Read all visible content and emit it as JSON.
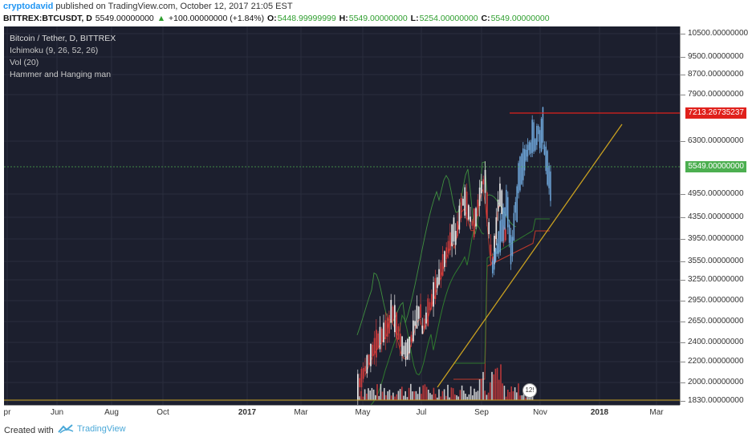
{
  "header": {
    "author": "cryptodavid",
    "published_text": " published on TradingView.com, October 12, 2017 21:05 EST"
  },
  "ticker": {
    "symbol": "BITTREX:BTCUSDT, D",
    "price": "5549.00000000",
    "change_arrow": "▲",
    "change": "+100.00000000 (+1.84%)",
    "o_label": "O:",
    "o": "5448.99999999",
    "h_label": "H:",
    "h": "5549.00000000",
    "l_label": "L:",
    "l": "5254.00000000",
    "c_label": "C:",
    "c": "5549.00000000"
  },
  "legend": {
    "title": "Bitcoin / Tether, D, BITTREX",
    "ind1": "Ichimoku (9, 26, 52, 26)",
    "ind2": "Vol (20)",
    "ind3": "Hammer and Hanging man"
  },
  "price_axis": {
    "labels": [
      "10500.00000000",
      "9500.00000000",
      "8700.00000000",
      "7900.00000000",
      "6300.00000000",
      "4950.00000000",
      "4350.00000000",
      "3950.00000000",
      "3550.00000000",
      "3250.00000000",
      "2950.00000000",
      "2650.00000000",
      "2400.00000000",
      "2200.00000000",
      "2000.00000000",
      "1830.00000000"
    ],
    "resistance_badge": "7213.26735237",
    "last_badge": "5549.00000000"
  },
  "time_axis": {
    "labels": [
      "pr",
      "Jun",
      "Aug",
      "Oct",
      "2017",
      "Mar",
      "May",
      "Jul",
      "Sep",
      "Nov",
      "2018",
      "Mar"
    ]
  },
  "events": {
    "badge": "12!"
  },
  "footer": {
    "created_with": "Created with",
    "brand": "TradingView"
  },
  "colors": {
    "background": "#1c1f2e",
    "candle_up": "#e8e8e8",
    "candle_down": "#d33c3c",
    "highlight_candles": "#6fa8dc",
    "trendline": "#c8a020",
    "resistance": "#e0211c",
    "last_price_line": "#4caf50",
    "ichimoku_green": "#2f7a2f",
    "ichimoku_red": "#c0392b"
  },
  "chart_data": {
    "type": "candlestick",
    "series_highlight_monthly": [
      {
        "x": "Sep",
        "y": 4400
      },
      {
        "x": "mid-Sep",
        "y": 3400
      },
      {
        "x": "Oct",
        "y": 5000
      },
      {
        "x": "Nov",
        "y": 7213
      },
      {
        "x": "last",
        "y": 5549
      }
    ],
    "resistance_level": 7213.26735237,
    "last_price": 5549.0
  }
}
